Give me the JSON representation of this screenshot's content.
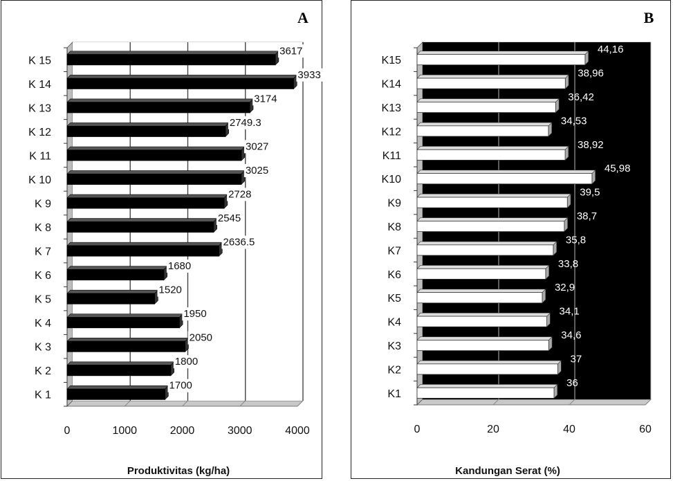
{
  "chart_data": [
    {
      "type": "bar",
      "orientation": "horizontal",
      "panel_label": "A",
      "categories": [
        "K 1",
        "K 2",
        "K 3",
        "K 4",
        "K 5",
        "K 6",
        "K 7",
        "K 8",
        "K 9",
        "K 10",
        "K 11",
        "K 12",
        "K 13",
        "K 14",
        "K 15"
      ],
      "values": [
        1700,
        1800,
        2050,
        1950,
        1520,
        1680,
        2636.5,
        2545,
        2728,
        3025,
        3027,
        2749.3,
        3174,
        3933,
        3617
      ],
      "value_labels": [
        "1700",
        "1800",
        "2050",
        "1950",
        "1520",
        "1680",
        "2636.5",
        "2545",
        "2728",
        "3025",
        "3027",
        "2749.3",
        "3174",
        "3933",
        "3617"
      ],
      "xlabel": "Produktivitas (kg/ha)",
      "xlim": [
        0,
        4000
      ],
      "xticks": [
        "0",
        "1000",
        "2000",
        "3000",
        "4000"
      ],
      "grid": "vertical",
      "bar_color": "#000000",
      "plot_background": "#ffffff"
    },
    {
      "type": "bar",
      "orientation": "horizontal",
      "panel_label": "B",
      "categories": [
        "K1",
        "K2",
        "K3",
        "K4",
        "K5",
        "K6",
        "K7",
        "K8",
        "K9",
        "K10",
        "K11",
        "K12",
        "K13",
        "K14",
        "K15"
      ],
      "values": [
        36,
        37,
        34.6,
        34.1,
        32.9,
        33.8,
        35.8,
        38.7,
        39.5,
        45.98,
        38.92,
        34.53,
        36.42,
        38.96,
        44.16
      ],
      "value_labels": [
        "36",
        "37",
        "34,6",
        "34,1",
        "32,9",
        "33,8",
        "35,8",
        "38,7",
        "39,5",
        "45,98",
        "38,92",
        "34,53",
        "36,42",
        "38,96",
        "44,16"
      ],
      "xlabel": "Kandungan Serat (%)",
      "xlim": [
        0,
        60
      ],
      "xticks": [
        "0",
        "20",
        "40",
        "60"
      ],
      "grid": "vertical",
      "bar_color": "#ffffff",
      "plot_background": "#000000"
    }
  ]
}
